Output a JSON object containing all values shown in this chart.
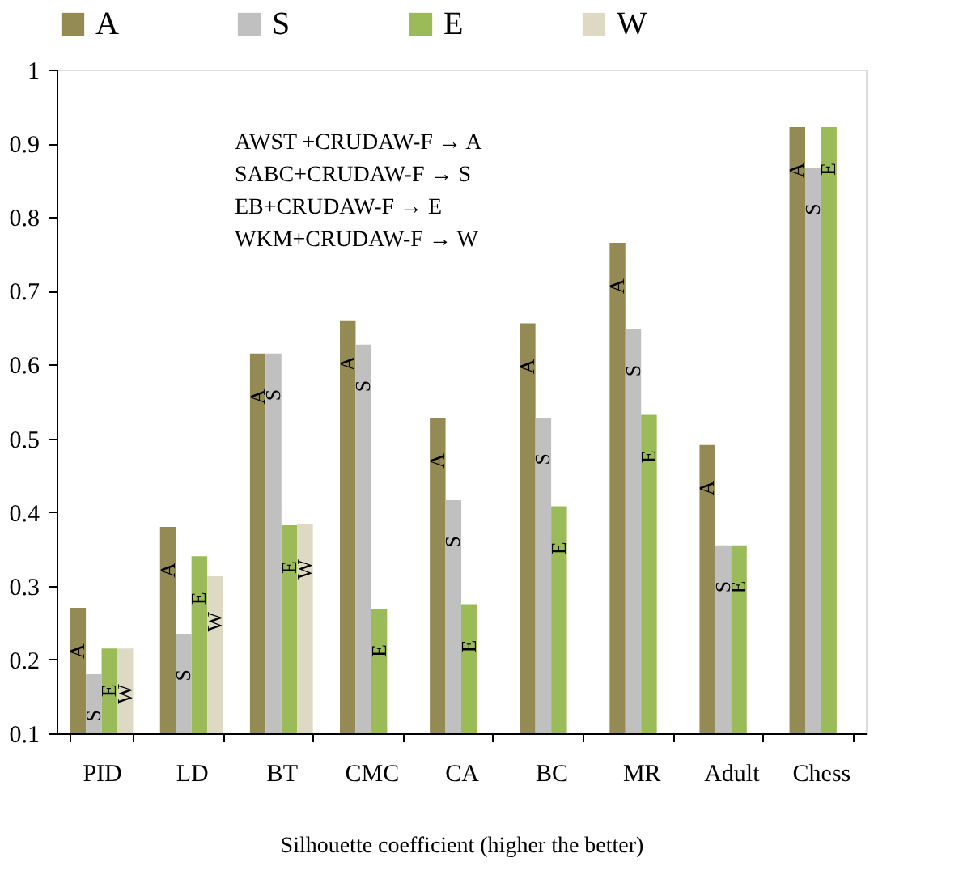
{
  "chart_data": {
    "type": "bar",
    "xlabel": "Silhouette coefficient (higher the better)",
    "categories": [
      "PID",
      "LD",
      "BT",
      "CMC",
      "CA",
      "BC",
      "MR",
      "Adult",
      "Chess"
    ],
    "series": [
      {
        "name": "A",
        "color": "#948a54",
        "values": [
          0.27,
          0.38,
          0.615,
          0.66,
          0.528,
          0.656,
          0.765,
          0.491,
          0.922
        ]
      },
      {
        "name": "S",
        "color": "#c0c0c0",
        "values": [
          0.18,
          0.235,
          0.615,
          0.627,
          0.416,
          0.528,
          0.648,
          0.355,
          0.867
        ]
      },
      {
        "name": "E",
        "color": "#9bbb59",
        "values": [
          0.215,
          0.34,
          0.382,
          0.269,
          0.275,
          0.408,
          0.532,
          0.355,
          0.922
        ]
      },
      {
        "name": "W",
        "color": "#ddd9c3",
        "values": [
          0.215,
          0.313,
          0.384,
          null,
          null,
          null,
          null,
          null,
          null
        ]
      }
    ],
    "ylim": [
      0.1,
      1
    ],
    "yticks": [
      0.1,
      0.2,
      0.3,
      0.4,
      0.5,
      0.6,
      0.7,
      0.8,
      0.9,
      1
    ],
    "grid": false,
    "legend": "top",
    "annotations": [
      "AWST +CRUDAW-F → A",
      "SABC+CRUDAW-F → S",
      "EB+CRUDAW-F → E",
      "WKM+CRUDAW-F → W"
    ]
  }
}
